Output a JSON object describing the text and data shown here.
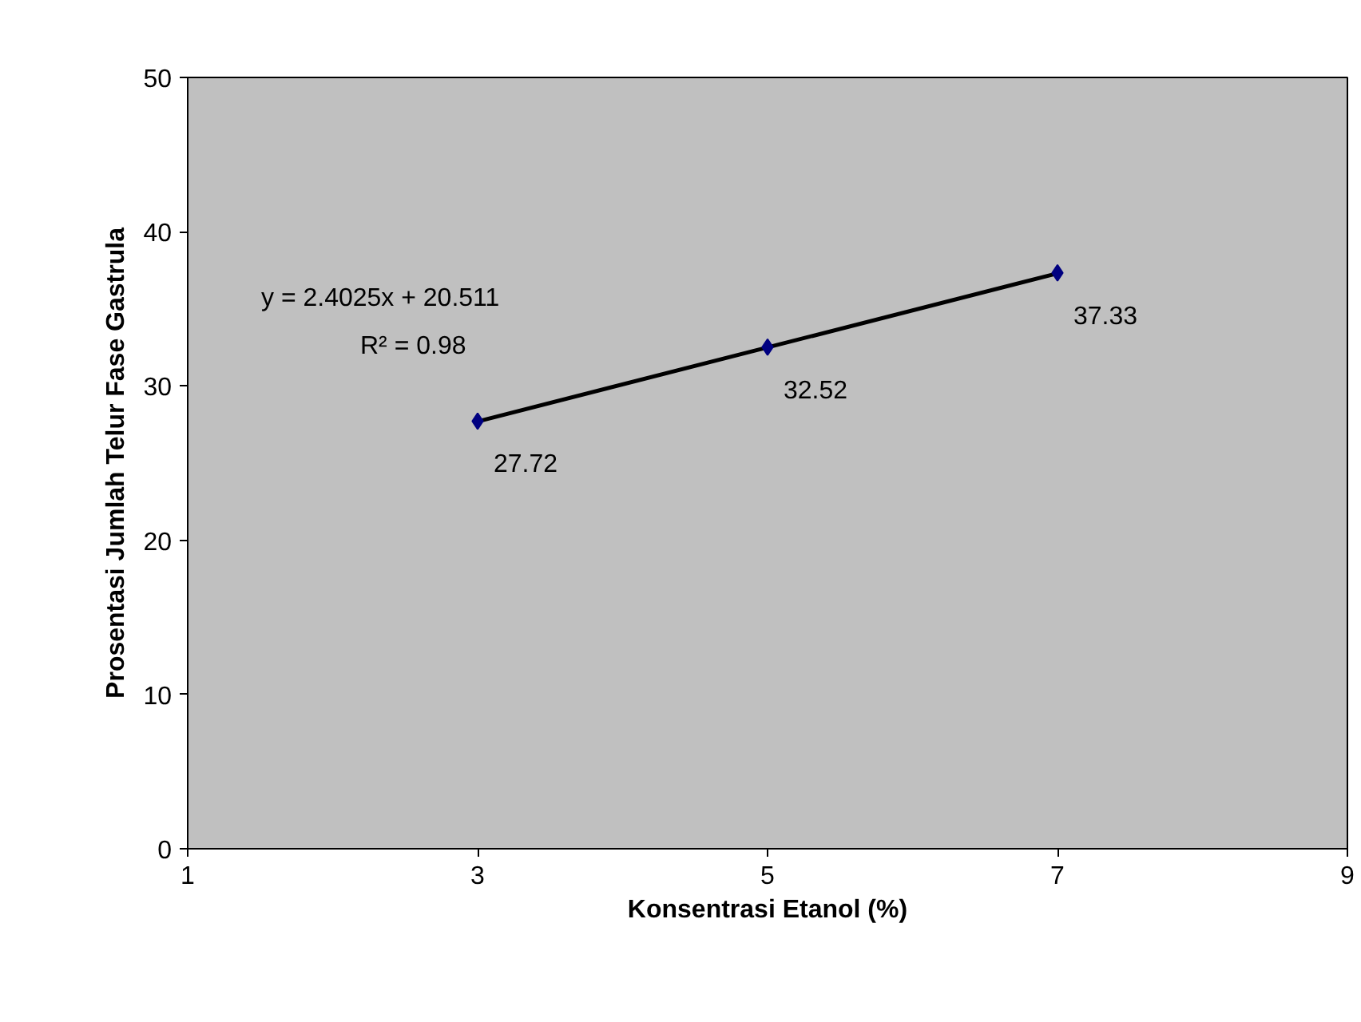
{
  "chart_data": {
    "type": "scatter",
    "xlabel": "Konsentrasi Etanol (%)",
    "ylabel": "Prosentasi Jumlah Telur Fase Gastrula",
    "xlim": [
      1,
      9
    ],
    "ylim": [
      0,
      50
    ],
    "xticks": [
      1,
      3,
      5,
      7,
      9
    ],
    "yticks": [
      0,
      10,
      20,
      30,
      40,
      50
    ],
    "grid": false,
    "series": [
      {
        "type": "line",
        "x": [
          3,
          7
        ],
        "values": [
          27.7,
          37.3
        ],
        "color": "#000000",
        "marker": "none"
      },
      {
        "x": [
          3,
          5,
          7
        ],
        "values": [
          27.72,
          32.52,
          37.33
        ],
        "color": "#000080",
        "marker": "diamond",
        "value_labels": [
          "27.72",
          "32.52",
          "37.33"
        ]
      }
    ],
    "annotations": [
      "y = 2.4025x + 20.511",
      "R² = 0.98"
    ]
  }
}
